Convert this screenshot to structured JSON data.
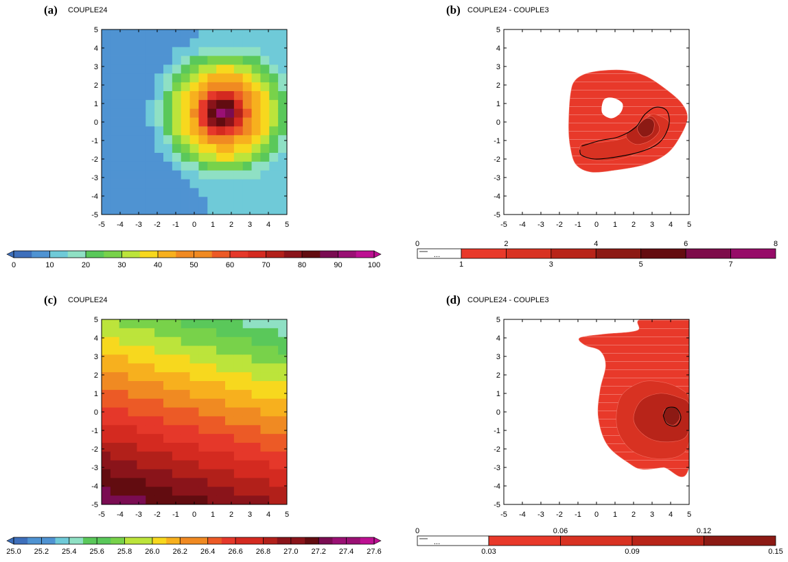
{
  "figure": {
    "panels": [
      {
        "letter": "(a)",
        "title": "COUPLE24"
      },
      {
        "letter": "(b)",
        "title": "COUPLE24 - COUPLE3"
      },
      {
        "letter": "(c)",
        "title": "COUPLE24"
      },
      {
        "letter": "(d)",
        "title": "COUPLE24 - COUPLE3"
      }
    ]
  },
  "colors": {
    "rainbow": [
      "#3e6fbb",
      "#4f93d2",
      "#6fcad8",
      "#8fe0c4",
      "#5ac85a",
      "#78d24a",
      "#bce43b",
      "#f7d81e",
      "#f7b01e",
      "#f08a22",
      "#ec5a26",
      "#e5382a",
      "#d42a20",
      "#b2201a",
      "#8a141a",
      "#620c10",
      "#7a0c52",
      "#9a1074",
      "#bd1092"
    ],
    "diff_reds": [
      "#e8392a",
      "#d83222",
      "#b82419",
      "#8c1a14",
      "#640d10",
      "#7d0c4a",
      "#960c68"
    ],
    "line": "#000000"
  },
  "chart_data": [
    {
      "type": "heatmap",
      "panel": "a",
      "title": "COUPLE24",
      "grid": "21x21 cells on a -5..5 by -5..5 domain",
      "xlim": [
        -5,
        5
      ],
      "ylim": [
        -5,
        5
      ],
      "xticks": [
        "-5",
        "-4",
        "-3",
        "-2",
        "-1",
        "0",
        "1",
        "2",
        "3",
        "4",
        "5"
      ],
      "yticks": [
        "5",
        "4",
        "3",
        "2",
        "1",
        "0",
        "-1",
        "-2",
        "-3",
        "-4",
        "-5"
      ],
      "field": {
        "kind": "ring_vortex",
        "peak": 93,
        "center": [
          1.5,
          0.5
        ],
        "ring_value": 40,
        "ring_radius": 2.3,
        "background_low": 6,
        "background_high": 14
      },
      "colorbar": {
        "labels": [
          "0",
          "10",
          "20",
          "30",
          "40",
          "50",
          "60",
          "70",
          "80",
          "90",
          "100"
        ],
        "min": 0,
        "max": 100,
        "end_arrows": true
      }
    },
    {
      "type": "heatmap",
      "panel": "b",
      "title": "COUPLE24 - COUPLE3",
      "style": "filled contours",
      "xlim": [
        -5,
        5
      ],
      "ylim": [
        -5,
        5
      ],
      "xticks": [
        "-5",
        "-4",
        "-3",
        "-2",
        "-1",
        "0",
        "1",
        "2",
        "3",
        "4",
        "5"
      ],
      "yticks": [
        "5",
        "4",
        "3",
        "2",
        "1",
        "0",
        "-1",
        "-2",
        "-3",
        "-4",
        "-5"
      ],
      "regions": [
        {
          "level": 1,
          "outline": [
            [
              -1.4,
              1.5
            ],
            [
              -1.1,
              2.3
            ],
            [
              -0.2,
              2.7
            ],
            [
              1.4,
              2.8
            ],
            [
              2.6,
              2.5
            ],
            [
              3.7,
              1.8
            ],
            [
              4.6,
              1.0
            ],
            [
              4.9,
              0.2
            ],
            [
              4.5,
              -0.8
            ],
            [
              3.8,
              -1.7
            ],
            [
              2.6,
              -2.3
            ],
            [
              1.0,
              -2.6
            ],
            [
              -0.3,
              -2.7
            ],
            [
              -1.1,
              -2.3
            ],
            [
              -1.4,
              -1.4
            ],
            [
              -1.5,
              -0.3
            ]
          ]
        },
        {
          "level": 0,
          "outline": [
            [
              0.4,
              1.2
            ],
            [
              0.9,
              1.3
            ],
            [
              1.4,
              1.0
            ],
            [
              1.3,
              0.5
            ],
            [
              0.8,
              0.2
            ],
            [
              0.3,
              0.5
            ]
          ]
        },
        {
          "level": 2,
          "outline": [
            [
              -0.8,
              -1.2
            ],
            [
              0.2,
              -1.1
            ],
            [
              1.4,
              -0.9
            ],
            [
              2.3,
              -0.4
            ],
            [
              2.8,
              0.3
            ],
            [
              3.2,
              0.4
            ],
            [
              3.9,
              0.0
            ],
            [
              3.6,
              -0.8
            ],
            [
              2.8,
              -1.4
            ],
            [
              1.6,
              -1.9
            ],
            [
              0.2,
              -2.1
            ],
            [
              -0.8,
              -1.8
            ]
          ]
        },
        {
          "level": 3,
          "outline": [
            [
              1.6,
              -0.7
            ],
            [
              2.4,
              0.0
            ],
            [
              3.0,
              0.3
            ],
            [
              3.4,
              -0.4
            ],
            [
              2.9,
              -1.0
            ],
            [
              2.1,
              -1.2
            ]
          ]
        },
        {
          "level": 4,
          "outline": [
            [
              2.2,
              -0.3
            ],
            [
              2.7,
              0.2
            ],
            [
              3.1,
              0.0
            ],
            [
              3.0,
              -0.6
            ],
            [
              2.5,
              -0.8
            ]
          ]
        }
      ],
      "contour_line": [
        [
          -0.8,
          -1.3
        ],
        [
          0.2,
          -1.0
        ],
        [
          1.2,
          -0.8
        ],
        [
          2.1,
          -0.3
        ],
        [
          2.6,
          0.4
        ],
        [
          3.2,
          0.8
        ],
        [
          3.8,
          0.6
        ],
        [
          3.9,
          -0.2
        ],
        [
          3.4,
          -1.1
        ],
        [
          2.4,
          -1.6
        ],
        [
          1.0,
          -1.9
        ],
        [
          -0.1,
          -2.0
        ],
        [
          -0.8,
          -1.8
        ],
        [
          -0.9,
          -1.5
        ]
      ],
      "colorbar": {
        "top_labels": [
          "0",
          "2",
          "4",
          "6",
          "8"
        ],
        "bottom_labels": [
          "1",
          "3",
          "5",
          "7"
        ],
        "first_box": "..."
      }
    },
    {
      "type": "heatmap",
      "panel": "c",
      "title": "COUPLE24",
      "grid": "21x21 cells on a -5..5 by -5..5 domain",
      "xlim": [
        -5,
        5
      ],
      "ylim": [
        -5,
        5
      ],
      "xticks": [
        "-5",
        "-4",
        "-3",
        "-2",
        "-1",
        "0",
        "1",
        "2",
        "3",
        "4",
        "5"
      ],
      "yticks": [
        "5",
        "4",
        "3",
        "2",
        "1",
        "0",
        "-1",
        "-2",
        "-3",
        "-4",
        "-5"
      ],
      "field": {
        "kind": "tilted_gradient",
        "top_right_value": 25.3,
        "bottom_left_value": 27.6,
        "tilt": 0.35
      },
      "colorbar": {
        "labels": [
          "25.0",
          "25.2",
          "25.4",
          "25.6",
          "25.8",
          "26.0",
          "26.2",
          "26.4",
          "26.6",
          "26.8",
          "27.0",
          "27.2",
          "27.4",
          "27.6"
        ],
        "min": 25.0,
        "max": 27.6,
        "end_arrows": true
      }
    },
    {
      "type": "heatmap",
      "panel": "d",
      "title": "COUPLE24 - COUPLE3",
      "style": "filled contours",
      "xlim": [
        -5,
        5
      ],
      "ylim": [
        -5,
        5
      ],
      "xticks": [
        "-5",
        "-4",
        "-3",
        "-2",
        "-1",
        "0",
        "1",
        "2",
        "3",
        "4",
        "5"
      ],
      "yticks": [
        "5",
        "4",
        "3",
        "2",
        "1",
        "0",
        "-1",
        "-2",
        "-3",
        "-4",
        "-5"
      ],
      "regions": [
        {
          "level": 1,
          "outline": [
            [
              -0.9,
              4.0
            ],
            [
              0.4,
              4.2
            ],
            [
              2.2,
              4.4
            ],
            [
              2.4,
              5.0
            ],
            [
              5.0,
              5.0
            ],
            [
              5.0,
              -2.9
            ],
            [
              3.6,
              -3.0
            ],
            [
              2.5,
              -3.1
            ],
            [
              1.8,
              -2.8
            ],
            [
              0.6,
              -1.8
            ],
            [
              0.1,
              -0.3
            ],
            [
              0.2,
              1.2
            ],
            [
              0.5,
              2.5
            ],
            [
              0.2,
              3.3
            ],
            [
              -0.6,
              3.6
            ]
          ]
        },
        {
          "level": 2,
          "outline": [
            [
              1.1,
              -0.8
            ],
            [
              1.3,
              0.8
            ],
            [
              2.4,
              1.6
            ],
            [
              3.6,
              1.6
            ],
            [
              4.6,
              1.2
            ],
            [
              5.0,
              0.6
            ],
            [
              5.0,
              -1.6
            ],
            [
              4.4,
              -2.4
            ],
            [
              3.0,
              -2.5
            ],
            [
              1.8,
              -2.0
            ]
          ]
        },
        {
          "level": 3,
          "outline": [
            [
              2.0,
              -0.4
            ],
            [
              2.4,
              0.6
            ],
            [
              3.4,
              1.0
            ],
            [
              4.4,
              0.8
            ],
            [
              5.0,
              0.4
            ],
            [
              5.0,
              -0.9
            ],
            [
              4.6,
              -1.5
            ],
            [
              3.4,
              -1.6
            ],
            [
              2.5,
              -1.2
            ]
          ]
        },
        {
          "level": 4,
          "outline": [
            [
              3.6,
              -0.1
            ],
            [
              3.8,
              0.2
            ],
            [
              4.3,
              0.2
            ],
            [
              4.5,
              -0.3
            ],
            [
              4.2,
              -0.7
            ],
            [
              3.8,
              -0.6
            ]
          ]
        }
      ],
      "contour_line": [
        [
          3.6,
          -0.2
        ],
        [
          3.8,
          0.2
        ],
        [
          4.3,
          0.2
        ],
        [
          4.55,
          -0.3
        ],
        [
          4.3,
          -0.75
        ],
        [
          3.8,
          -0.65
        ],
        [
          3.6,
          -0.2
        ]
      ],
      "colorbar": {
        "top_labels": [
          "0",
          "0.06",
          "0.12"
        ],
        "bottom_labels": [
          "0.03",
          "0.09",
          "0.15"
        ],
        "first_box": "..."
      }
    }
  ]
}
